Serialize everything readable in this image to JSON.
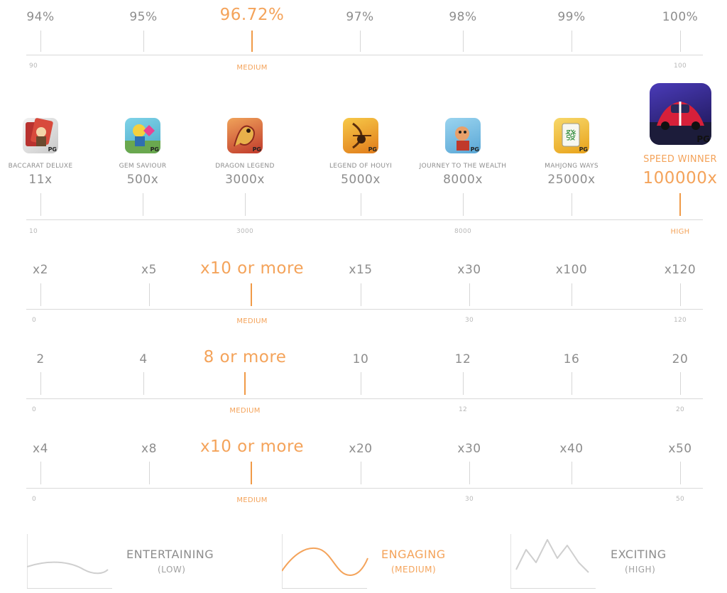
{
  "rtp": {
    "labels": [
      "94%",
      "95%",
      "96.72%",
      "97%",
      "98%",
      "99%",
      "100%"
    ],
    "highlight_index": 2,
    "scale": [
      "90",
      "MEDIUM",
      "100"
    ]
  },
  "games": {
    "items": [
      {
        "name": "BACCARAT DELUXE",
        "mult": "11x",
        "icon": "baccarat-icon"
      },
      {
        "name": "GEM SAVIOUR",
        "mult": "500x",
        "icon": "gem-saviour-icon"
      },
      {
        "name": "DRAGON LEGEND",
        "mult": "3000x",
        "icon": "dragon-icon"
      },
      {
        "name": "LEGEND OF HOUYI",
        "mult": "5000x",
        "icon": "houyi-icon"
      },
      {
        "name": "JOURNEY TO THE WEALTH",
        "mult": "8000x",
        "icon": "journey-icon"
      },
      {
        "name": "MAHJONG WAYS",
        "mult": "25000x",
        "icon": "mahjong-icon"
      },
      {
        "name": "SPEED WINNER",
        "mult": "100000x",
        "icon": "speed-winner-icon"
      }
    ],
    "badge": "PG",
    "highlight_index": 6,
    "scale": [
      "10",
      "3000",
      "8000",
      "HIGH"
    ]
  },
  "row3": {
    "labels": [
      "x2",
      "x5",
      "x10 or more",
      "x15",
      "x30",
      "x100",
      "x120"
    ],
    "highlight_index": 2,
    "scale": [
      "0",
      "MEDIUM",
      "30",
      "120"
    ]
  },
  "row4": {
    "labels": [
      "2",
      "4",
      "8 or more",
      "10",
      "12",
      "16",
      "20"
    ],
    "highlight_index": 2,
    "scale": [
      "0",
      "MEDIUM",
      "12",
      "20"
    ]
  },
  "row5": {
    "labels": [
      "x4",
      "x8",
      "x10 or more",
      "x20",
      "x30",
      "x40",
      "x50"
    ],
    "highlight_index": 2,
    "scale": [
      "0",
      "MEDIUM",
      "30",
      "50"
    ]
  },
  "volatility": [
    {
      "title": "ENTERTAINING",
      "sub": "(LOW)",
      "highlight": false
    },
    {
      "title": "ENGAGING",
      "sub": "(MEDIUM)",
      "highlight": true
    },
    {
      "title": "EXCITING",
      "sub": "(HIGH)",
      "highlight": false
    }
  ],
  "colors": {
    "accent": "#f4a35a",
    "muted": "#8d8d8d",
    "line": "#d9d9d9"
  }
}
